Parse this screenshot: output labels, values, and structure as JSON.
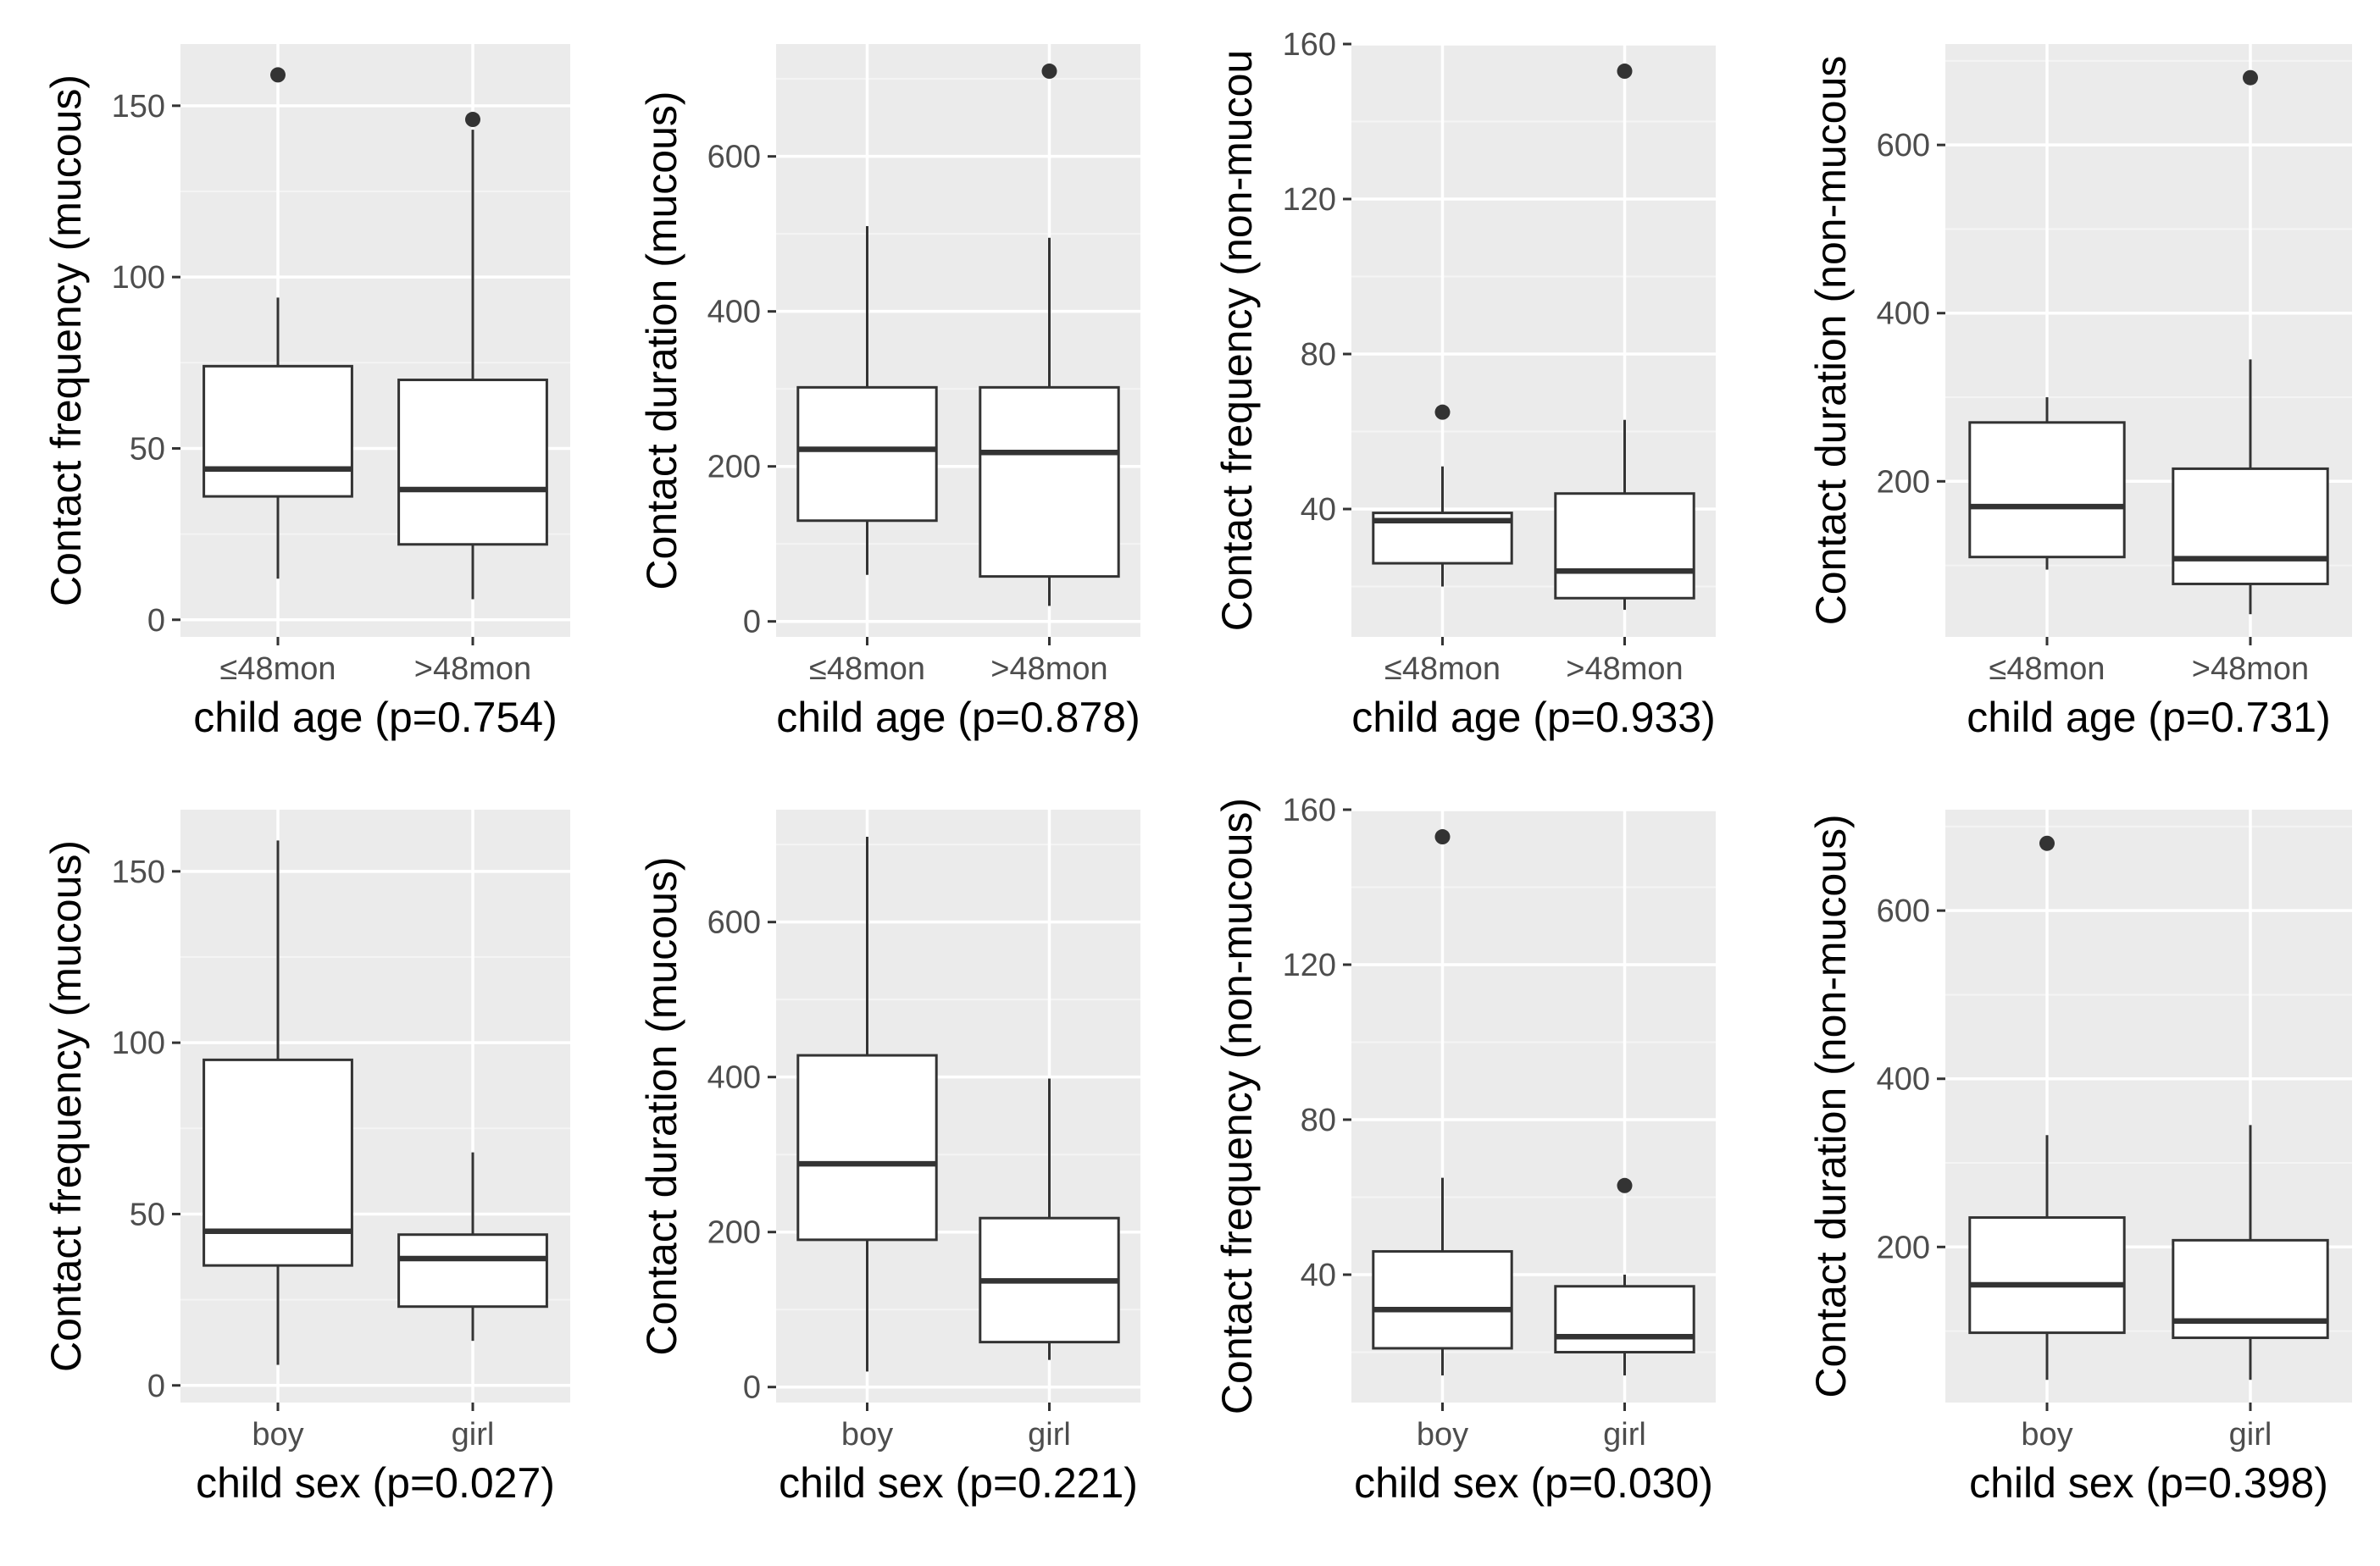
{
  "figure": {
    "type": "boxplot-grid",
    "rows": 2,
    "cols": 4
  },
  "colors": {
    "panel_bg": "#ebebeb",
    "grid_major": "#ffffff",
    "grid_minor": "#f4f4f4",
    "box_fill": "#ffffff",
    "line": "#333333",
    "tick_text": "#4d4d4d",
    "axis_title": "#000000"
  },
  "chart_data": [
    {
      "type": "boxplot",
      "ylabel": "Contact frequency (mucous)",
      "xlabel": "child age (p=0.754)",
      "categories": [
        "≤48mon",
        ">48mon"
      ],
      "yticks": [
        0,
        50,
        100,
        150
      ],
      "ylim": [
        -5,
        168
      ],
      "boxes": [
        {
          "lower": 12,
          "q1": 36,
          "median": 44,
          "q3": 74,
          "upper": 94,
          "outliers": [
            159
          ]
        },
        {
          "lower": 6,
          "q1": 22,
          "median": 38,
          "q3": 70,
          "upper": 143,
          "outliers": [
            146
          ]
        }
      ]
    },
    {
      "type": "boxplot",
      "ylabel": "Contact duration (mucous)",
      "xlabel": "child age (p=0.878)",
      "categories": [
        "≤48mon",
        ">48mon"
      ],
      "yticks": [
        0,
        200,
        400,
        600
      ],
      "ylim": [
        -20,
        745
      ],
      "boxes": [
        {
          "lower": 60,
          "q1": 130,
          "median": 222,
          "q3": 302,
          "upper": 510,
          "outliers": []
        },
        {
          "lower": 20,
          "q1": 58,
          "median": 218,
          "q3": 302,
          "upper": 495,
          "outliers": [
            710
          ]
        }
      ]
    },
    {
      "type": "boxplot",
      "ylabel": "Contact frequency (non-mucou",
      "xlabel": "child age (p=0.933)",
      "categories": [
        "≤48mon",
        ">48mon"
      ],
      "yticks": [
        40,
        80,
        120,
        160
      ],
      "ylim": [
        7,
        160
      ],
      "boxes": [
        {
          "lower": 20,
          "q1": 26,
          "median": 37,
          "q3": 39,
          "upper": 51,
          "outliers": [
            65
          ]
        },
        {
          "lower": 14,
          "q1": 17,
          "median": 24,
          "q3": 44,
          "upper": 63,
          "outliers": [
            153
          ]
        }
      ]
    },
    {
      "type": "boxplot",
      "ylabel": "Contact duration (non-mucous",
      "xlabel": "child age (p=0.731)",
      "categories": [
        "≤48mon",
        ">48mon"
      ],
      "yticks": [
        200,
        400,
        600
      ],
      "ylim": [
        15,
        720
      ],
      "boxes": [
        {
          "lower": 95,
          "q1": 110,
          "median": 170,
          "q3": 270,
          "upper": 300,
          "outliers": []
        },
        {
          "lower": 42,
          "q1": 78,
          "median": 108,
          "q3": 215,
          "upper": 345,
          "outliers": [
            680
          ]
        }
      ]
    },
    {
      "type": "boxplot",
      "ylabel": "Contact frequency (mucous)",
      "xlabel": "child sex (p=0.027)",
      "categories": [
        "boy",
        "girl"
      ],
      "yticks": [
        0,
        50,
        100,
        150
      ],
      "ylim": [
        -5,
        168
      ],
      "boxes": [
        {
          "lower": 6,
          "q1": 35,
          "median": 45,
          "q3": 95,
          "upper": 159,
          "outliers": []
        },
        {
          "lower": 13,
          "q1": 23,
          "median": 37,
          "q3": 44,
          "upper": 68,
          "outliers": []
        }
      ]
    },
    {
      "type": "boxplot",
      "ylabel": "Contact duration (mucous)",
      "xlabel": "child sex (p=0.221)",
      "categories": [
        "boy",
        "girl"
      ],
      "yticks": [
        0,
        200,
        400,
        600
      ],
      "ylim": [
        -20,
        745
      ],
      "boxes": [
        {
          "lower": 20,
          "q1": 190,
          "median": 288,
          "q3": 428,
          "upper": 710,
          "outliers": []
        },
        {
          "lower": 35,
          "q1": 58,
          "median": 137,
          "q3": 218,
          "upper": 398,
          "outliers": []
        }
      ]
    },
    {
      "type": "boxplot",
      "ylabel": "Contact frequency (non-mucous)",
      "xlabel": "child sex (p=0.030)",
      "categories": [
        "boy",
        "girl"
      ],
      "yticks": [
        40,
        80,
        120,
        160
      ],
      "ylim": [
        7,
        160
      ],
      "boxes": [
        {
          "lower": 14,
          "q1": 21,
          "median": 31,
          "q3": 46,
          "upper": 65,
          "outliers": [
            153
          ]
        },
        {
          "lower": 14,
          "q1": 20,
          "median": 24,
          "q3": 37,
          "upper": 40,
          "outliers": [
            63
          ]
        }
      ]
    },
    {
      "type": "boxplot",
      "ylabel": "Contact duration (non-mucous)",
      "xlabel": "child sex (p=0.398)",
      "categories": [
        "boy",
        "girl"
      ],
      "yticks": [
        200,
        400,
        600
      ],
      "ylim": [
        15,
        720
      ],
      "boxes": [
        {
          "lower": 42,
          "q1": 98,
          "median": 155,
          "q3": 235,
          "upper": 333,
          "outliers": [
            680
          ]
        },
        {
          "lower": 42,
          "q1": 92,
          "median": 112,
          "q3": 208,
          "upper": 345,
          "outliers": []
        }
      ]
    }
  ]
}
